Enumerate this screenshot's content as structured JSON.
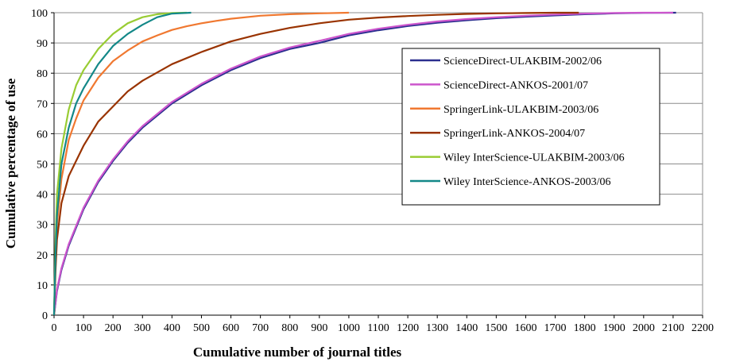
{
  "chart_data": {
    "type": "line",
    "title": "",
    "xlabel": "Cumulative number of journal titles",
    "ylabel": "Cumulative percentage of use",
    "xlim": [
      0,
      2200
    ],
    "ylim": [
      0,
      100
    ],
    "x_ticks": [
      0,
      100,
      200,
      300,
      400,
      500,
      600,
      700,
      800,
      900,
      1000,
      1100,
      1200,
      1300,
      1400,
      1500,
      1600,
      1700,
      1800,
      1900,
      2000,
      2100,
      2200
    ],
    "y_ticks": [
      0,
      10,
      20,
      30,
      40,
      50,
      60,
      70,
      80,
      90,
      100
    ],
    "grid": "horizontal",
    "legend_position": "top-right",
    "series": [
      {
        "name": "ScienceDirect-ULAKBIM-2002/06",
        "color": "#2b2f8f",
        "x": [
          0,
          10,
          25,
          50,
          100,
          150,
          200,
          250,
          300,
          400,
          500,
          600,
          700,
          800,
          900,
          1000,
          1100,
          1200,
          1300,
          1400,
          1500,
          1600,
          1700,
          1800,
          1900,
          2000,
          2110
        ],
        "y": [
          0,
          8,
          15,
          23,
          35,
          44,
          51,
          57,
          62,
          70,
          76,
          81,
          85,
          88,
          90,
          92.5,
          94.2,
          95.6,
          96.7,
          97.5,
          98.2,
          98.7,
          99.1,
          99.5,
          99.8,
          99.95,
          100
        ]
      },
      {
        "name": "ScienceDirect-ANKOS-2001/07",
        "color": "#cc55cc",
        "x": [
          0,
          10,
          25,
          50,
          100,
          150,
          200,
          250,
          300,
          400,
          500,
          600,
          700,
          800,
          900,
          1000,
          1100,
          1200,
          1300,
          1400,
          1500,
          1600,
          1700,
          1800,
          1900,
          2000,
          2100
        ],
        "y": [
          0,
          8.5,
          15.5,
          23.5,
          35.5,
          44.5,
          51.5,
          57.5,
          62.5,
          70.5,
          76.5,
          81.5,
          85.5,
          88.5,
          90.7,
          93,
          94.7,
          96,
          97.1,
          97.9,
          98.5,
          99,
          99.4,
          99.7,
          99.9,
          100,
          100
        ]
      },
      {
        "name": "SpringerLink-ULAKBIM-2003/06",
        "color": "#f07830",
        "x": [
          0,
          5,
          10,
          25,
          50,
          75,
          100,
          150,
          200,
          250,
          300,
          350,
          400,
          450,
          500,
          550,
          600,
          700,
          800,
          900,
          1000
        ],
        "y": [
          0,
          20,
          30,
          45,
          58,
          65,
          71,
          78.5,
          84,
          87.5,
          90.5,
          92.5,
          94.3,
          95.5,
          96.5,
          97.3,
          98,
          99,
          99.5,
          99.8,
          100
        ]
      },
      {
        "name": "SpringerLink-ANKOS-2004/07",
        "color": "#993300",
        "x": [
          0,
          5,
          10,
          25,
          50,
          100,
          150,
          200,
          250,
          300,
          400,
          500,
          600,
          700,
          800,
          900,
          1000,
          1100,
          1200,
          1300,
          1400,
          1500,
          1600,
          1700,
          1780
        ],
        "y": [
          0,
          15,
          25,
          37,
          46,
          56,
          64,
          69,
          74,
          77.5,
          83,
          87,
          90.5,
          93,
          95,
          96.5,
          97.7,
          98.4,
          98.9,
          99.3,
          99.6,
          99.8,
          99.9,
          100,
          100
        ]
      },
      {
        "name": "Wiley InterScience-ULAKBIM-2003/06",
        "color": "#99cc33",
        "x": [
          0,
          5,
          10,
          25,
          50,
          75,
          100,
          150,
          200,
          250,
          300,
          350,
          400,
          450
        ],
        "y": [
          0,
          25,
          40,
          55,
          68,
          76,
          81,
          88,
          93,
          96.5,
          98.5,
          99.5,
          99.9,
          100
        ]
      },
      {
        "name": "Wiley InterScience-ANKOS-2003/06",
        "color": "#138888",
        "x": [
          0,
          5,
          10,
          25,
          50,
          75,
          100,
          150,
          200,
          250,
          300,
          350,
          400,
          465
        ],
        "y": [
          0,
          20,
          33,
          50,
          62,
          70,
          75,
          83,
          89,
          93,
          96,
          98.5,
          99.7,
          100
        ]
      }
    ]
  }
}
